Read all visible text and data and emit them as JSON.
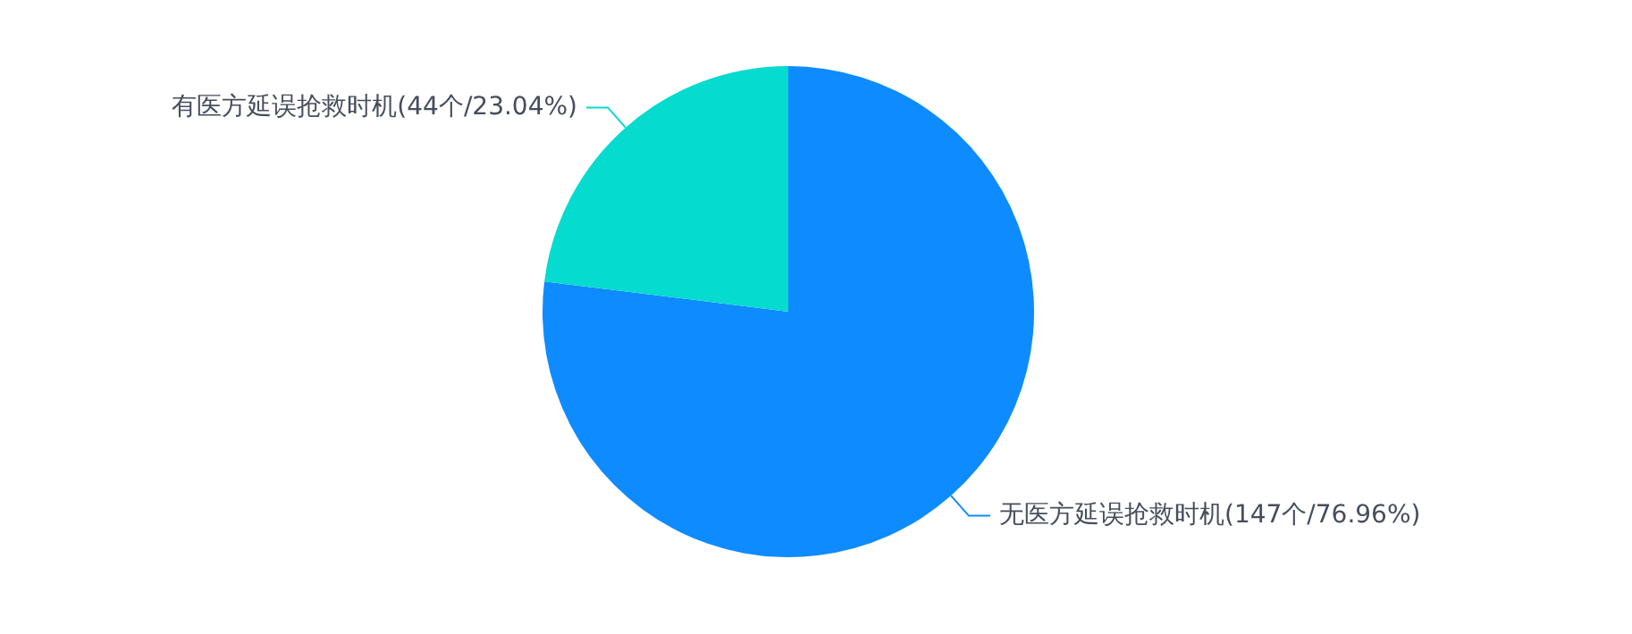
{
  "chart_data": {
    "type": "pie",
    "categories": [
      "无医方延误抢救时机(147个/76.96%)",
      "有医方延误抢救时机(44个/23.04%)"
    ],
    "values": [
      147,
      44
    ],
    "colors": [
      "#0e8bff",
      "#05dbce"
    ],
    "legend": false
  }
}
